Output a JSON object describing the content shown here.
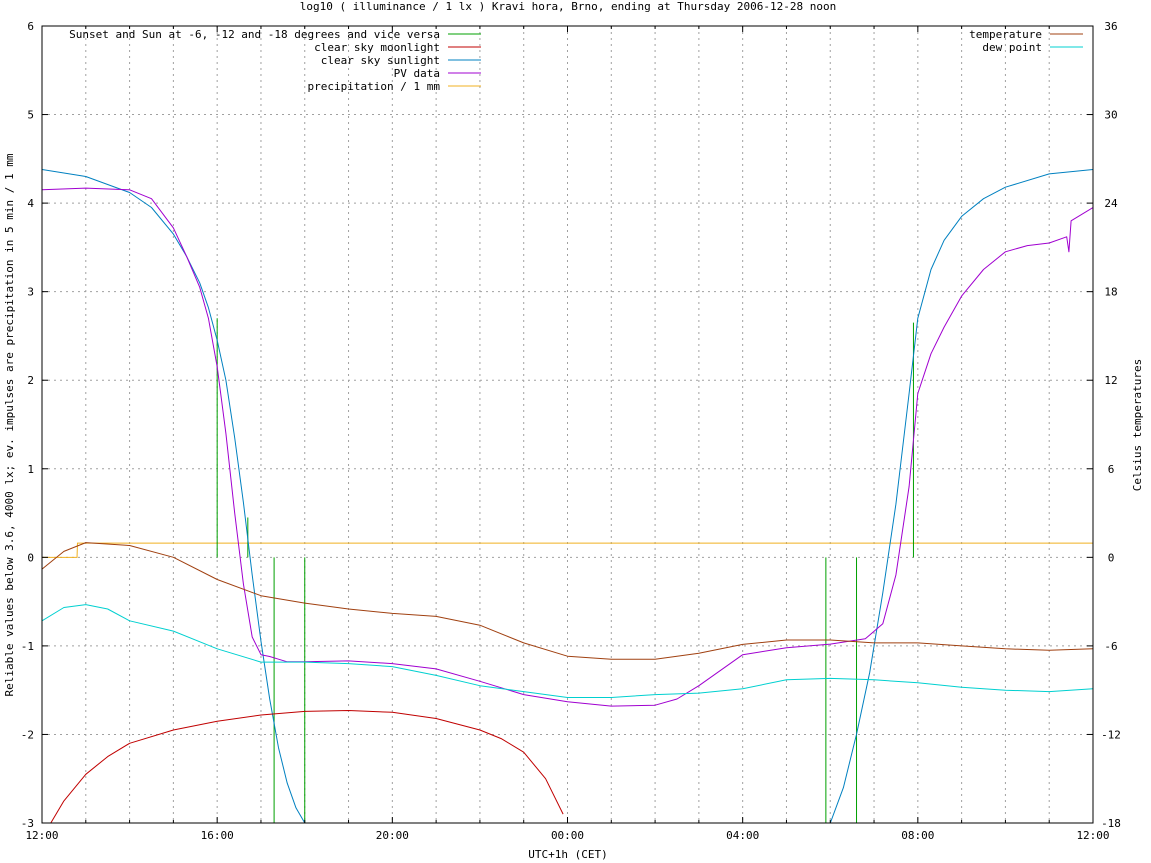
{
  "chart_data": {
    "type": "line",
    "title": "log10 ( illuminance / 1 lx ) Kravi hora, Brno, ending at Thursday 2006-12-28 noon",
    "xlabel": "UTC+1h (CET)",
    "ylabel": "Reliable values below 3.6, 4000 lx; ev. impulses are precipitation in 5 min / 1 mm",
    "y2label": "Celsius temperatures",
    "x_unit": "hours since 12:00",
    "xlim": [
      0,
      24
    ],
    "ylim": [
      -3,
      6
    ],
    "y2lim": [
      -18,
      36
    ],
    "x_tick_positions": [
      0,
      4,
      8,
      12,
      16,
      20,
      24
    ],
    "x_tick_labels": [
      "12:00",
      "16:00",
      "20:00",
      "00:00",
      "04:00",
      "08:00",
      "12:00"
    ],
    "y_ticks": [
      -3,
      -2,
      -1,
      0,
      1,
      2,
      3,
      4,
      5,
      6
    ],
    "y2_ticks": [
      -18,
      -12,
      -6,
      0,
      6,
      12,
      18,
      24,
      30,
      36
    ],
    "grid": true,
    "legend_left": [
      {
        "label": "Sunset and Sun at -6, -12 and -18 degrees and vice versa",
        "color": "#00a000"
      },
      {
        "label": "clear sky moonlight",
        "color": "#c00000"
      },
      {
        "label": "clear sky sunlight",
        "color": "#0080c0"
      },
      {
        "label": "PV data",
        "color": "#a000d0"
      },
      {
        "label": "precipitation / 1 mm",
        "color": "#f0b020"
      }
    ],
    "legend_right": [
      {
        "label": "temperature",
        "color": "#a04010"
      },
      {
        "label": "dew point",
        "color": "#00d0d0"
      }
    ],
    "sun_events": [
      {
        "x": 4.0,
        "y": 2.7
      },
      {
        "x": 4.7,
        "y": 0.45
      },
      {
        "x": 5.3,
        "y": 0
      },
      {
        "x": 6.0,
        "y": 0
      },
      {
        "x": 17.9,
        "y": 0
      },
      {
        "x": 18.6,
        "y": 0
      },
      {
        "x": 19.9,
        "y": 2.65
      }
    ],
    "precipitation": {
      "x": [
        0,
        0.8,
        0.81,
        24
      ],
      "y": [
        0,
        0,
        0.16,
        0.16
      ]
    },
    "series": [
      {
        "name": "clear sky sunlight",
        "color": "#0080c0",
        "axis": "y1",
        "x": [
          0,
          1,
          2,
          2.5,
          3,
          3.3,
          3.6,
          3.8,
          4.0,
          4.2,
          4.4,
          4.6,
          4.8,
          5.0,
          5.2,
          5.4,
          5.6,
          5.8,
          6.0,
          18.0,
          18.3,
          18.6,
          18.9,
          19.2,
          19.5,
          19.8,
          20.0,
          20.3,
          20.6,
          21.0,
          21.5,
          22,
          23,
          24
        ],
        "y": [
          4.38,
          4.3,
          4.12,
          3.95,
          3.65,
          3.4,
          3.1,
          2.82,
          2.45,
          2.0,
          1.35,
          0.62,
          -0.2,
          -0.95,
          -1.6,
          -2.15,
          -2.55,
          -2.83,
          -3.0,
          -3.0,
          -2.6,
          -2.0,
          -1.3,
          -0.4,
          0.6,
          1.85,
          2.7,
          3.25,
          3.58,
          3.85,
          4.05,
          4.18,
          4.33,
          4.38
        ]
      },
      {
        "name": "clear sky moonlight",
        "color": "#c00000",
        "axis": "y1",
        "x": [
          0.2,
          0.5,
          1,
          1.5,
          2,
          3,
          4,
          5,
          6,
          7,
          8,
          9,
          10,
          10.5,
          11,
          11.5,
          11.9
        ],
        "y": [
          -3.0,
          -2.75,
          -2.45,
          -2.25,
          -2.1,
          -1.95,
          -1.85,
          -1.78,
          -1.74,
          -1.73,
          -1.75,
          -1.82,
          -1.95,
          -2.05,
          -2.2,
          -2.5,
          -2.9
        ]
      },
      {
        "name": "PV data",
        "color": "#a000d0",
        "axis": "y1",
        "x": [
          0,
          1,
          2,
          2.5,
          3,
          3.3,
          3.6,
          3.8,
          4.0,
          4.2,
          4.4,
          4.6,
          4.8,
          5.0,
          5.2,
          5.4,
          5.6,
          6,
          7,
          8,
          9,
          10,
          11,
          12,
          13,
          14,
          14.5,
          15,
          16,
          17,
          18,
          18.8,
          19.2,
          19.5,
          19.8,
          20.0,
          20.3,
          20.6,
          21,
          21.5,
          22,
          22.5,
          23,
          23.4,
          23.45,
          23.5,
          24
        ],
        "y": [
          4.15,
          4.17,
          4.15,
          4.05,
          3.72,
          3.4,
          3.05,
          2.7,
          2.15,
          1.4,
          0.5,
          -0.3,
          -0.9,
          -1.1,
          -1.12,
          -1.15,
          -1.18,
          -1.18,
          -1.17,
          -1.2,
          -1.26,
          -1.4,
          -1.55,
          -1.63,
          -1.68,
          -1.67,
          -1.6,
          -1.45,
          -1.1,
          -1.02,
          -0.98,
          -0.92,
          -0.75,
          -0.2,
          0.8,
          1.85,
          2.3,
          2.6,
          2.95,
          3.25,
          3.45,
          3.52,
          3.55,
          3.62,
          3.45,
          3.8,
          3.95
        ]
      },
      {
        "name": "temperature",
        "color": "#a04010",
        "axis": "y2",
        "x": [
          0,
          0.5,
          1,
          2,
          3,
          4,
          5,
          6,
          7,
          8,
          9,
          10,
          11,
          12,
          13,
          14,
          15,
          16,
          17,
          18,
          19,
          20,
          21,
          22,
          23,
          24
        ],
        "y": [
          -0.8,
          0.4,
          1.0,
          0.8,
          0.0,
          -1.5,
          -2.6,
          -3.1,
          -3.5,
          -3.8,
          -4.0,
          -4.6,
          -5.8,
          -6.7,
          -6.9,
          -6.9,
          -6.5,
          -5.9,
          -5.6,
          -5.6,
          -5.8,
          -5.8,
          -6.0,
          -6.2,
          -6.3,
          -6.2
        ]
      },
      {
        "name": "dew point",
        "color": "#00d0d0",
        "axis": "y2",
        "x": [
          0,
          0.5,
          1,
          1.5,
          2,
          3,
          4,
          5,
          6,
          7,
          8,
          9,
          10,
          11,
          12,
          13,
          14,
          15,
          16,
          17,
          18,
          19,
          20,
          21,
          22,
          23,
          24
        ],
        "y": [
          -4.3,
          -3.4,
          -3.2,
          -3.5,
          -4.3,
          -5.0,
          -6.2,
          -7.1,
          -7.1,
          -7.2,
          -7.4,
          -8.0,
          -8.7,
          -9.1,
          -9.5,
          -9.5,
          -9.3,
          -9.2,
          -8.9,
          -8.3,
          -8.2,
          -8.3,
          -8.5,
          -8.8,
          -9.0,
          -9.1,
          -8.9
        ]
      }
    ]
  }
}
